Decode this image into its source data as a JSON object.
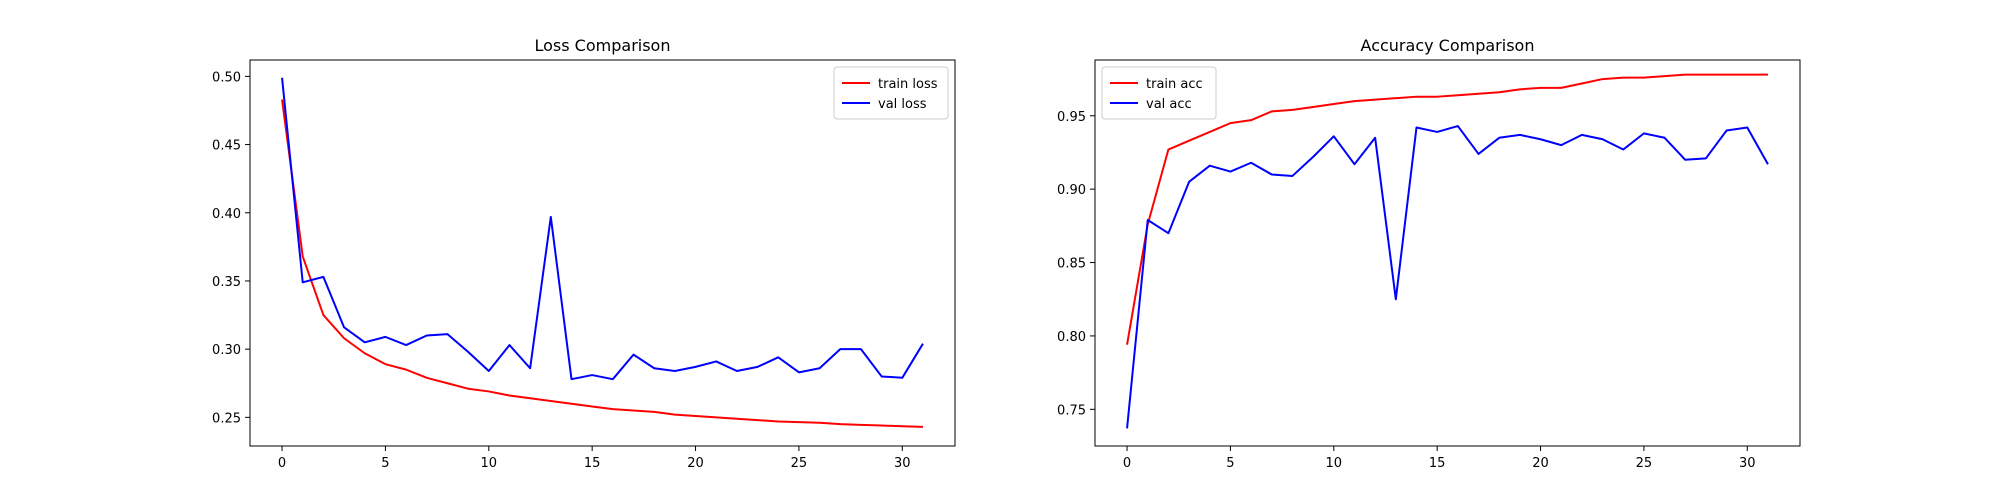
{
  "chart_data": [
    {
      "type": "line",
      "title": "Loss Comparison",
      "xlabel": "",
      "ylabel": "",
      "xlim": [
        -1.55,
        32.55
      ],
      "ylim": [
        0.229,
        0.512
      ],
      "xticks": [
        0,
        5,
        10,
        15,
        20,
        25,
        30
      ],
      "xtick_labels": [
        "0",
        "5",
        "10",
        "15",
        "20",
        "25",
        "30"
      ],
      "yticks": [
        0.25,
        0.3,
        0.35,
        0.4,
        0.45,
        0.5
      ],
      "ytick_labels": [
        "0.25",
        "0.30",
        "0.35",
        "0.40",
        "0.45",
        "0.50"
      ],
      "legend_position": "top-right",
      "grid": false,
      "x": [
        0,
        1,
        2,
        3,
        4,
        5,
        6,
        7,
        8,
        9,
        10,
        11,
        12,
        13,
        14,
        15,
        16,
        17,
        18,
        19,
        20,
        21,
        22,
        23,
        24,
        25,
        26,
        27,
        28,
        29,
        30,
        31
      ],
      "series": [
        {
          "name": "train loss",
          "color": "#ff0000",
          "values": [
            0.483,
            0.368,
            0.325,
            0.308,
            0.297,
            0.289,
            0.285,
            0.279,
            0.275,
            0.271,
            0.269,
            0.266,
            0.264,
            0.262,
            0.26,
            0.258,
            0.256,
            0.255,
            0.254,
            0.252,
            0.251,
            0.25,
            0.249,
            0.248,
            0.247,
            0.2465,
            0.246,
            0.245,
            0.2445,
            0.244,
            0.2435,
            0.243
          ]
        },
        {
          "name": "val loss",
          "color": "#0000ff",
          "values": [
            0.499,
            0.349,
            0.353,
            0.316,
            0.305,
            0.309,
            0.303,
            0.31,
            0.311,
            0.298,
            0.284,
            0.303,
            0.286,
            0.397,
            0.278,
            0.281,
            0.278,
            0.296,
            0.286,
            0.284,
            0.287,
            0.291,
            0.284,
            0.287,
            0.294,
            0.283,
            0.286,
            0.3,
            0.3,
            0.28,
            0.279,
            0.304
          ]
        }
      ]
    },
    {
      "type": "line",
      "title": "Accuracy Comparison",
      "xlabel": "",
      "ylabel": "",
      "xlim": [
        -1.55,
        32.55
      ],
      "ylim": [
        0.725,
        0.988
      ],
      "xticks": [
        0,
        5,
        10,
        15,
        20,
        25,
        30
      ],
      "xtick_labels": [
        "0",
        "5",
        "10",
        "15",
        "20",
        "25",
        "30"
      ],
      "yticks": [
        0.75,
        0.8,
        0.85,
        0.9,
        0.95
      ],
      "ytick_labels": [
        "0.75",
        "0.80",
        "0.85",
        "0.90",
        "0.95"
      ],
      "legend_position": "top-left",
      "grid": false,
      "x": [
        0,
        1,
        2,
        3,
        4,
        5,
        6,
        7,
        8,
        9,
        10,
        11,
        12,
        13,
        14,
        15,
        16,
        17,
        18,
        19,
        20,
        21,
        22,
        23,
        24,
        25,
        26,
        27,
        28,
        29,
        30,
        31
      ],
      "series": [
        {
          "name": "train acc",
          "color": "#ff0000",
          "values": [
            0.794,
            0.876,
            0.927,
            0.933,
            0.939,
            0.945,
            0.947,
            0.953,
            0.954,
            0.956,
            0.958,
            0.96,
            0.961,
            0.962,
            0.963,
            0.963,
            0.964,
            0.965,
            0.966,
            0.968,
            0.969,
            0.969,
            0.972,
            0.975,
            0.976,
            0.976,
            0.977,
            0.978,
            0.978,
            0.978,
            0.978,
            0.978
          ]
        },
        {
          "name": "val acc",
          "color": "#0000ff",
          "values": [
            0.737,
            0.879,
            0.87,
            0.905,
            0.916,
            0.912,
            0.918,
            0.91,
            0.909,
            0.922,
            0.936,
            0.917,
            0.935,
            0.825,
            0.942,
            0.939,
            0.943,
            0.924,
            0.935,
            0.937,
            0.934,
            0.93,
            0.937,
            0.934,
            0.927,
            0.938,
            0.935,
            0.92,
            0.921,
            0.94,
            0.942,
            0.917
          ]
        }
      ]
    }
  ]
}
